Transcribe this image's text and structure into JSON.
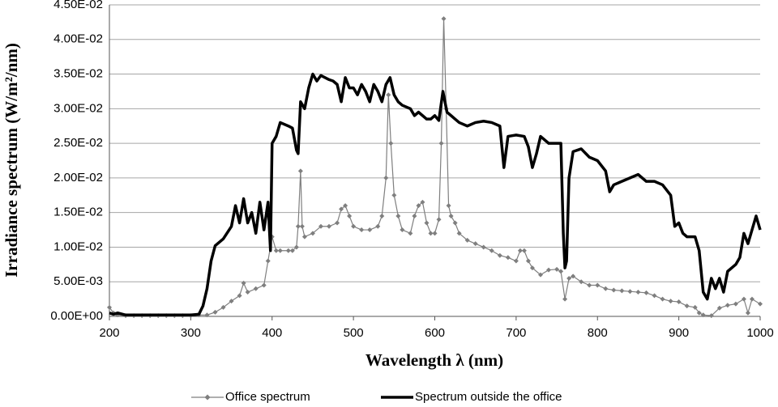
{
  "chart_data": {
    "type": "line",
    "xlabel": "Wavelength λ (nm)",
    "ylabel": "Irradiance spectrum (W/m²/nm)",
    "xlim": [
      200,
      1000
    ],
    "xticks": [
      200,
      300,
      400,
      500,
      600,
      700,
      800,
      900,
      1000
    ],
    "ylim": [
      0,
      0.045
    ],
    "yticks": [
      {
        "value": 0,
        "label": "0.00E+00"
      },
      {
        "value": 0.005,
        "label": "5.00E-03"
      },
      {
        "value": 0.01,
        "label": "1.00E-02"
      },
      {
        "value": 0.015,
        "label": "1.50E-02"
      },
      {
        "value": 0.02,
        "label": "2.00E-02"
      },
      {
        "value": 0.025,
        "label": "2.50E-02"
      },
      {
        "value": 0.03,
        "label": "3.00E-02"
      },
      {
        "value": 0.035,
        "label": "3.50E-02"
      },
      {
        "value": 0.04,
        "label": "4.00E-02"
      },
      {
        "value": 0.045,
        "label": "4.50E-02"
      }
    ],
    "grid": true,
    "legend": "bottom",
    "series": [
      {
        "name": "Office spectrum",
        "color": "#7f7f7f",
        "marker": "diamond",
        "x": [
          200,
          205,
          210,
          220,
          230,
          240,
          250,
          260,
          270,
          280,
          290,
          300,
          310,
          320,
          330,
          340,
          350,
          360,
          365,
          370,
          380,
          390,
          395,
          400,
          405,
          410,
          420,
          425,
          430,
          432,
          435,
          437,
          440,
          450,
          460,
          470,
          480,
          485,
          490,
          495,
          500,
          510,
          520,
          530,
          535,
          540,
          543,
          546,
          550,
          555,
          560,
          570,
          575,
          580,
          585,
          590,
          595,
          600,
          605,
          608,
          611,
          614,
          617,
          620,
          625,
          630,
          640,
          650,
          660,
          670,
          680,
          690,
          700,
          705,
          710,
          715,
          720,
          730,
          740,
          750,
          755,
          760,
          765,
          770,
          780,
          790,
          800,
          810,
          820,
          830,
          840,
          850,
          860,
          870,
          880,
          890,
          900,
          910,
          920,
          925,
          930,
          940,
          950,
          960,
          970,
          980,
          985,
          990,
          1000
        ],
        "values": [
          0.0013,
          0.0005,
          0.0002,
          0.0001,
          0.0001,
          0.0001,
          0.0001,
          0.0001,
          0.0001,
          0.0001,
          0.0001,
          0.0001,
          0.0002,
          0.0002,
          0.0006,
          0.0013,
          0.0022,
          0.003,
          0.0048,
          0.0035,
          0.004,
          0.0045,
          0.008,
          0.0115,
          0.0095,
          0.0095,
          0.0095,
          0.0095,
          0.01,
          0.013,
          0.021,
          0.013,
          0.0115,
          0.012,
          0.013,
          0.013,
          0.0135,
          0.0155,
          0.016,
          0.0145,
          0.013,
          0.0125,
          0.0125,
          0.013,
          0.0145,
          0.02,
          0.032,
          0.025,
          0.0175,
          0.0145,
          0.0125,
          0.012,
          0.0145,
          0.016,
          0.0165,
          0.0135,
          0.012,
          0.012,
          0.014,
          0.025,
          0.043,
          0.03,
          0.016,
          0.0145,
          0.0135,
          0.012,
          0.011,
          0.0105,
          0.01,
          0.0095,
          0.0088,
          0.0085,
          0.008,
          0.0095,
          0.0095,
          0.008,
          0.007,
          0.006,
          0.0067,
          0.0068,
          0.0065,
          0.0025,
          0.0055,
          0.0058,
          0.005,
          0.0045,
          0.0045,
          0.004,
          0.0038,
          0.0037,
          0.0036,
          0.0035,
          0.0034,
          0.003,
          0.0025,
          0.0022,
          0.0021,
          0.0015,
          0.0013,
          0.0005,
          0.0002,
          0.0001,
          0.0012,
          0.0016,
          0.0018,
          0.0025,
          0.0005,
          0.0025,
          0.0018
        ]
      },
      {
        "name": "Spectrum outside the office",
        "color": "#000000",
        "marker": "none",
        "x": [
          200,
          205,
          210,
          220,
          250,
          300,
          310,
          315,
          320,
          325,
          330,
          340,
          350,
          355,
          360,
          365,
          370,
          375,
          380,
          385,
          390,
          395,
          398,
          400,
          405,
          410,
          420,
          425,
          430,
          432,
          435,
          440,
          445,
          450,
          455,
          460,
          470,
          475,
          480,
          485,
          490,
          495,
          500,
          505,
          510,
          515,
          520,
          525,
          530,
          535,
          540,
          545,
          550,
          555,
          560,
          570,
          575,
          580,
          585,
          590,
          595,
          600,
          605,
          610,
          615,
          620,
          625,
          630,
          640,
          650,
          660,
          670,
          680,
          685,
          690,
          700,
          710,
          715,
          720,
          725,
          730,
          740,
          750,
          755,
          758,
          760,
          762,
          765,
          770,
          780,
          790,
          800,
          810,
          815,
          820,
          830,
          840,
          850,
          860,
          870,
          880,
          890,
          895,
          900,
          905,
          910,
          920,
          925,
          930,
          935,
          940,
          945,
          950,
          955,
          960,
          970,
          975,
          980,
          985,
          990,
          995,
          1000
        ],
        "values": [
          0.0005,
          0.0003,
          0.0005,
          0.0002,
          0.0002,
          0.0002,
          0.0003,
          0.0015,
          0.004,
          0.008,
          0.0102,
          0.0112,
          0.013,
          0.016,
          0.0135,
          0.017,
          0.0135,
          0.015,
          0.012,
          0.0165,
          0.0125,
          0.0165,
          0.0095,
          0.025,
          0.026,
          0.028,
          0.0275,
          0.0272,
          0.024,
          0.0235,
          0.031,
          0.03,
          0.033,
          0.035,
          0.034,
          0.0348,
          0.0342,
          0.034,
          0.0335,
          0.031,
          0.0345,
          0.033,
          0.033,
          0.032,
          0.0335,
          0.0325,
          0.031,
          0.0335,
          0.0325,
          0.031,
          0.0335,
          0.0345,
          0.032,
          0.031,
          0.0305,
          0.03,
          0.029,
          0.0295,
          0.029,
          0.0285,
          0.0285,
          0.029,
          0.0283,
          0.0325,
          0.0295,
          0.029,
          0.0285,
          0.028,
          0.0275,
          0.028,
          0.0282,
          0.028,
          0.0275,
          0.0215,
          0.026,
          0.0262,
          0.026,
          0.0245,
          0.0215,
          0.0235,
          0.026,
          0.025,
          0.025,
          0.025,
          0.012,
          0.007,
          0.008,
          0.02,
          0.0238,
          0.0242,
          0.023,
          0.0225,
          0.021,
          0.018,
          0.019,
          0.0195,
          0.02,
          0.0205,
          0.0195,
          0.0195,
          0.019,
          0.0175,
          0.013,
          0.0135,
          0.012,
          0.0115,
          0.0115,
          0.0095,
          0.0035,
          0.0025,
          0.0055,
          0.004,
          0.0055,
          0.0035,
          0.0065,
          0.0075,
          0.0085,
          0.012,
          0.0105,
          0.0125,
          0.0145,
          0.0125
        ]
      }
    ]
  }
}
